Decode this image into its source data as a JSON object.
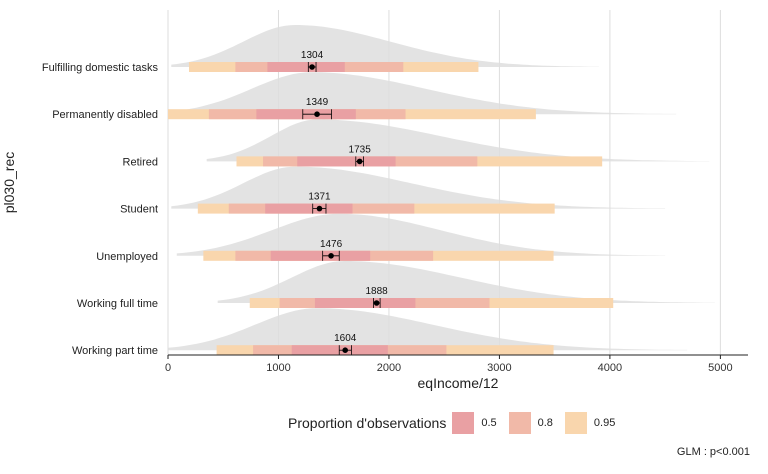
{
  "chart_data": {
    "type": "interval",
    "xlabel": "eqIncome/12",
    "ylabel": "pl030_rec",
    "xlim": [
      0,
      5250
    ],
    "x_ticks": [
      0,
      1000,
      2000,
      3000,
      4000,
      5000
    ],
    "grid": "vertical",
    "categories": [
      {
        "label": "Fulfilling domestic tasks",
        "median": 1304,
        "ci": [
          1270,
          1340
        ],
        "int50": [
          900,
          1600
        ],
        "int80": [
          610,
          2130
        ],
        "int95": [
          190,
          2810
        ],
        "dens_lo": 30,
        "dens_hi": 3900,
        "dens_peak": 1150
      },
      {
        "label": "Permanently disabled",
        "median": 1349,
        "ci": [
          1220,
          1480
        ],
        "int50": [
          800,
          1700
        ],
        "int80": [
          370,
          2150
        ],
        "int95": [
          0,
          3330
        ],
        "dens_lo": 0,
        "dens_hi": 4600,
        "dens_peak": 1300
      },
      {
        "label": "Retired",
        "median": 1735,
        "ci": [
          1700,
          1770
        ],
        "int50": [
          1170,
          2060
        ],
        "int80": [
          860,
          2800
        ],
        "int95": [
          620,
          3930
        ],
        "dens_lo": 350,
        "dens_hi": 4900,
        "dens_peak": 1350
      },
      {
        "label": "Student",
        "median": 1371,
        "ci": [
          1310,
          1430
        ],
        "int50": [
          880,
          1670
        ],
        "int80": [
          550,
          2230
        ],
        "int95": [
          270,
          3500
        ],
        "dens_lo": 30,
        "dens_hi": 4500,
        "dens_peak": 1150
      },
      {
        "label": "Unemployed",
        "median": 1476,
        "ci": [
          1400,
          1550
        ],
        "int50": [
          930,
          1830
        ],
        "int80": [
          610,
          2400
        ],
        "int95": [
          320,
          3490
        ],
        "dens_lo": 80,
        "dens_hi": 4500,
        "dens_peak": 1550
      },
      {
        "label": "Working full time",
        "median": 1888,
        "ci": [
          1860,
          1920
        ],
        "int50": [
          1330,
          2240
        ],
        "int80": [
          1010,
          2910
        ],
        "int95": [
          740,
          4030
        ],
        "dens_lo": 450,
        "dens_hi": 4950,
        "dens_peak": 1600
      },
      {
        "label": "Working part time",
        "median": 1604,
        "ci": [
          1550,
          1660
        ],
        "int50": [
          1120,
          1990
        ],
        "int80": [
          770,
          2520
        ],
        "int95": [
          440,
          3490
        ],
        "dens_lo": 0,
        "dens_hi": 4700,
        "dens_peak": 1350
      }
    ],
    "legend": {
      "title": "Proportion d'observations",
      "placement": "bottom",
      "items": [
        {
          "label": "0.5",
          "color": "#e9a0a3"
        },
        {
          "label": "0.8",
          "color": "#f1b9a8"
        },
        {
          "label": "0.95",
          "color": "#f9d6ad"
        }
      ]
    },
    "caption": "GLM : p<0.001",
    "colors": {
      "density": "#dedede",
      "gridline": "#dddddd",
      "point": "#000000"
    }
  }
}
